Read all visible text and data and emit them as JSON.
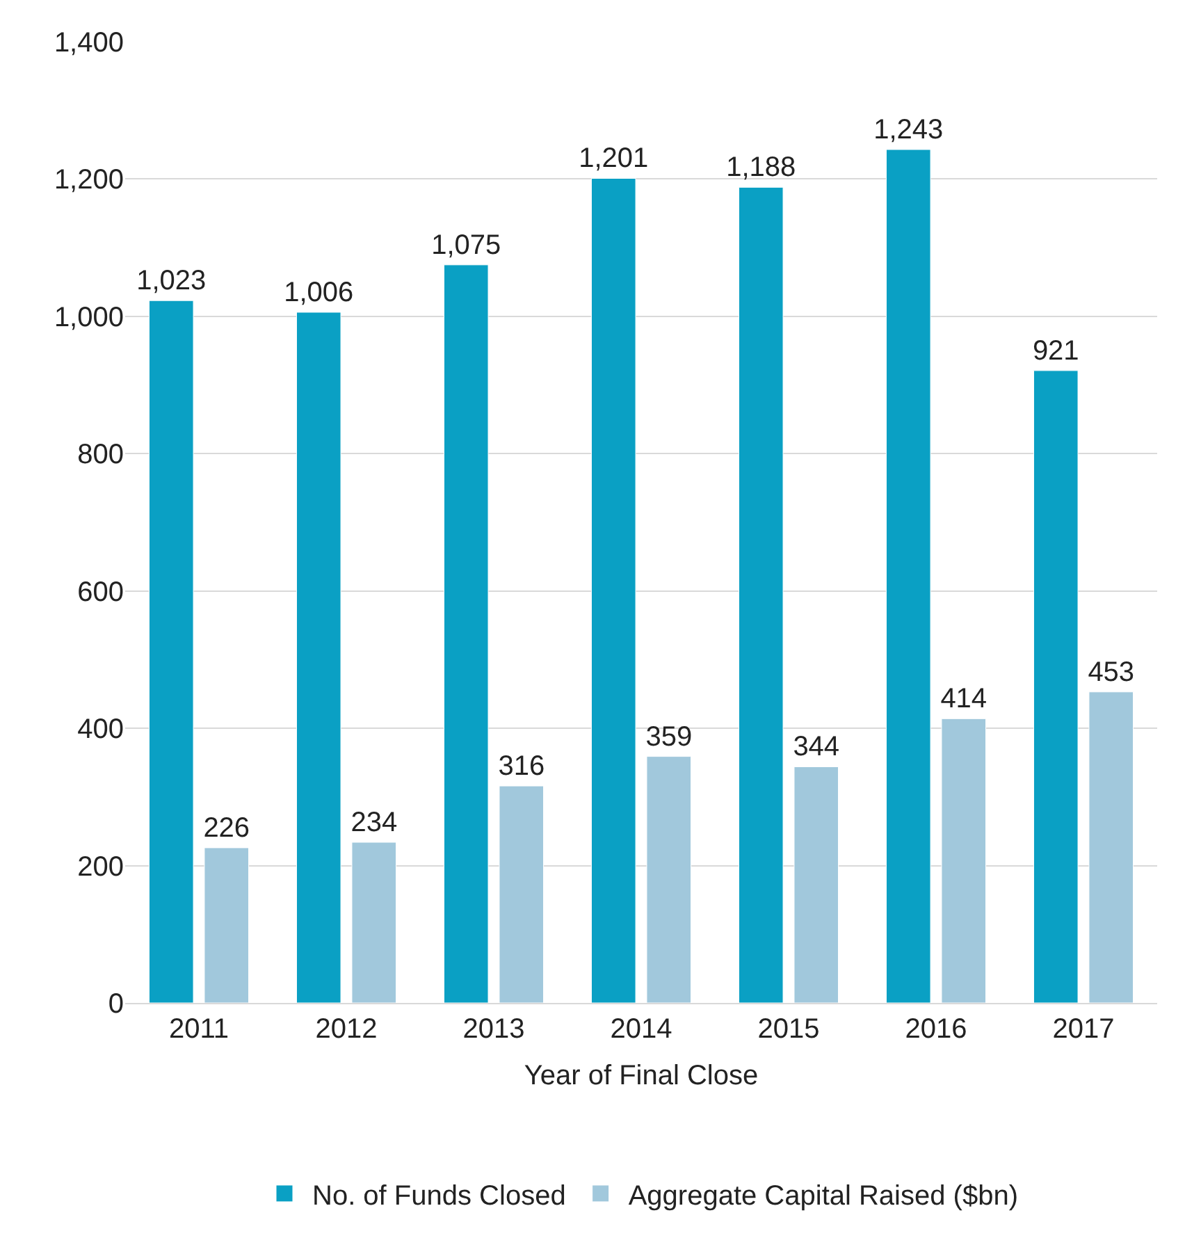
{
  "chart_data": {
    "type": "bar",
    "xlabel": "Year of Final Close",
    "categories": [
      "2011",
      "2012",
      "2013",
      "2014",
      "2015",
      "2016",
      "2017"
    ],
    "series": [
      {
        "name": "No. of Funds Closed",
        "color": "#0aa0c4",
        "values": [
          1023,
          1006,
          1075,
          1201,
          1188,
          1243,
          921
        ],
        "value_labels": [
          "1,023",
          "1,006",
          "1,075",
          "1,201",
          "1,188",
          "1,243",
          "921"
        ]
      },
      {
        "name": "Aggregate Capital Raised ($bn)",
        "color": "#a1c8dc",
        "values": [
          226,
          234,
          316,
          359,
          344,
          414,
          453
        ],
        "value_labels": [
          "226",
          "234",
          "316",
          "359",
          "344",
          "414",
          "453"
        ]
      }
    ],
    "ylim": [
      0,
      1400
    ],
    "yticks": [
      {
        "value": 0,
        "label": "0"
      },
      {
        "value": 200,
        "label": "200"
      },
      {
        "value": 400,
        "label": "400"
      },
      {
        "value": 600,
        "label": "600"
      },
      {
        "value": 800,
        "label": "800"
      },
      {
        "value": 1000,
        "label": "1,000"
      },
      {
        "value": 1200,
        "label": "1,200"
      },
      {
        "value": 1400,
        "label": "1,400"
      }
    ],
    "grid": "y",
    "legend": "bottom"
  }
}
